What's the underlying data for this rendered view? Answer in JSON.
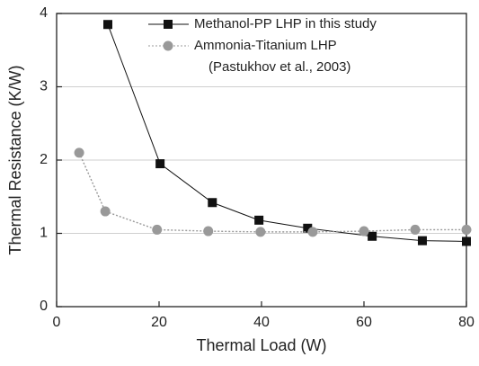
{
  "chart_data": {
    "type": "line",
    "x_label": "Thermal Load (W)",
    "y_label": "Thermal Resistance (K/W)",
    "xlim": [
      0,
      80
    ],
    "xticks": [
      0,
      20,
      40,
      60,
      80
    ],
    "ylim": [
      0,
      4
    ],
    "yticks": [
      0,
      1,
      2,
      3,
      4
    ],
    "grid": true,
    "legend": "upper right",
    "series": [
      {
        "name": "Methanol-PP LHP in this study",
        "color": "#111111",
        "marker": "square",
        "line": "solid",
        "x": [
          10,
          20.2,
          30.4,
          39.5,
          49,
          61.6,
          71.4,
          80
        ],
        "values": [
          3.85,
          1.95,
          1.42,
          1.18,
          1.07,
          0.96,
          0.9,
          0.89
        ]
      },
      {
        "name": "Ammonia-Titanium LHP",
        "source": "(Pastukhov et al., 2003)",
        "color": "#999999",
        "marker": "circle",
        "line": "dotted",
        "x": [
          4.4,
          9.5,
          19.6,
          29.6,
          39.8,
          50,
          60,
          70,
          80
        ],
        "values": [
          2.1,
          1.3,
          1.05,
          1.03,
          1.02,
          1.02,
          1.03,
          1.05,
          1.05
        ]
      }
    ]
  }
}
